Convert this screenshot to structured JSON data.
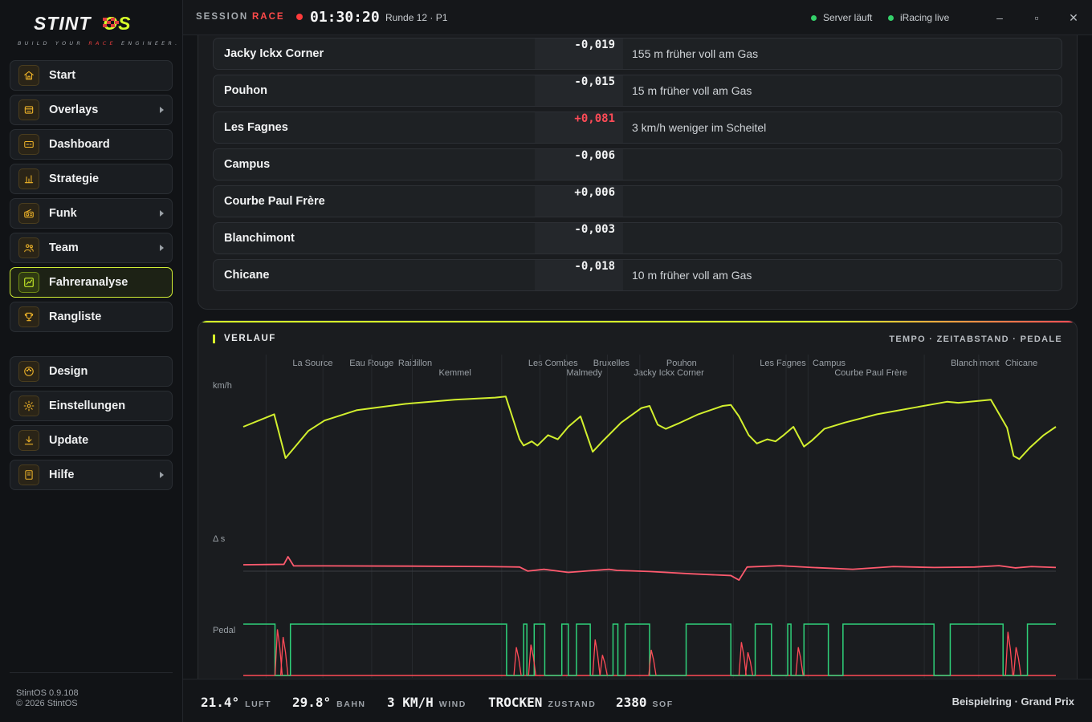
{
  "brand": {
    "name_a": "STINT",
    "name_b": "OS",
    "tagline_a": "BUILD YOUR ",
    "tagline_b": "RACE",
    "tagline_c": " ENGINEER."
  },
  "nav": [
    {
      "label": "Start",
      "icon": "home-icon",
      "arrow": false
    },
    {
      "label": "Overlays",
      "icon": "overlay-icon",
      "arrow": true
    },
    {
      "label": "Dashboard",
      "icon": "dashboard-icon",
      "arrow": false
    },
    {
      "label": "Strategie",
      "icon": "bar-chart-icon",
      "arrow": false
    },
    {
      "label": "Funk",
      "icon": "radio-icon",
      "arrow": true
    },
    {
      "label": "Team",
      "icon": "team-icon",
      "arrow": true
    },
    {
      "label": "Fahreranalyse",
      "icon": "trend-chart-icon",
      "arrow": false,
      "active": true
    },
    {
      "label": "Rangliste",
      "icon": "trophy-icon",
      "arrow": false
    }
  ],
  "nav2": [
    {
      "label": "Design",
      "icon": "palette-icon",
      "arrow": false
    },
    {
      "label": "Einstellungen",
      "icon": "gear-icon",
      "arrow": false
    },
    {
      "label": "Update",
      "icon": "download-icon",
      "arrow": false
    },
    {
      "label": "Hilfe",
      "icon": "book-icon",
      "arrow": true
    }
  ],
  "footer_side": {
    "version": "StintOS 0.9.108",
    "copyright": "© 2026 StintOS"
  },
  "topbar": {
    "session_label": "SESSION",
    "session_type": "RACE",
    "clock": "01:30:20",
    "lap": "Runde 12 · P1",
    "server_status": "Server läuft",
    "iracing_status": "iRacing live",
    "min_glyph": "–",
    "max_glyph": "▫",
    "close_glyph": "✕"
  },
  "corners": [
    {
      "name": "Jacky Ickx Corner",
      "delta": "-0,019",
      "note": "155 m früher voll am Gas",
      "red": false
    },
    {
      "name": "Pouhon",
      "delta": "-0,015",
      "note": "15 m früher voll am Gas",
      "red": false
    },
    {
      "name": "Les Fagnes",
      "delta": "+0,081",
      "note": "3 km/h weniger im Scheitel",
      "red": true
    },
    {
      "name": "Campus",
      "delta": "-0,006",
      "note": "",
      "red": false
    },
    {
      "name": "Courbe Paul Frère",
      "delta": "+0,006",
      "note": "",
      "red": false
    },
    {
      "name": "Blanchimont",
      "delta": "-0,003",
      "note": "",
      "red": false
    },
    {
      "name": "Chicane",
      "delta": "-0,018",
      "note": "10 m früher voll am Gas",
      "red": false
    }
  ],
  "chart": {
    "title": "VERLAUF",
    "subtitle": "TEMPO · ZEITABSTAND · PEDALE",
    "speed_label": "km/h",
    "delta_label": "Δ s",
    "pedal_label": "Pedal",
    "colors": {
      "speed": "#d2ef2e",
      "delta": "#ff5a6e",
      "throttle": "#2fd27a",
      "brake": "#ff4b57"
    }
  },
  "chart_data": {
    "type": "line",
    "x_domain": [
      0,
      1
    ],
    "sector_labels": [
      {
        "name": "La Source",
        "x": 0.03,
        "row": 0
      },
      {
        "name": "Eau Rouge",
        "x": 0.1,
        "row": 0
      },
      {
        "name": "Raidillon",
        "x": 0.16,
        "row": 0
      },
      {
        "name": "Kemmel",
        "x": 0.21,
        "row": 1
      },
      {
        "name": "Les Combes",
        "x": 0.32,
        "row": 0
      },
      {
        "name": "Malmedy",
        "x": 0.367,
        "row": 1
      },
      {
        "name": "Bruxelles",
        "x": 0.4,
        "row": 0
      },
      {
        "name": "Jacky Ickx Corner",
        "x": 0.45,
        "row": 1
      },
      {
        "name": "Pouhon",
        "x": 0.49,
        "row": 0
      },
      {
        "name": "Les Fagnes",
        "x": 0.605,
        "row": 0
      },
      {
        "name": "Campus",
        "x": 0.67,
        "row": 0
      },
      {
        "name": "Courbe Paul Frère",
        "x": 0.697,
        "row": 1
      },
      {
        "name": "Blanchimont",
        "x": 0.84,
        "row": 0
      },
      {
        "name": "Chicane",
        "x": 0.907,
        "row": 0
      }
    ],
    "speed_series": [
      [
        0,
        0.6
      ],
      [
        0.038,
        0.72
      ],
      [
        0.052,
        0.3
      ],
      [
        0.065,
        0.42
      ],
      [
        0.08,
        0.56
      ],
      [
        0.1,
        0.66
      ],
      [
        0.14,
        0.76
      ],
      [
        0.2,
        0.82
      ],
      [
        0.26,
        0.86
      ],
      [
        0.31,
        0.88
      ],
      [
        0.323,
        0.89
      ],
      [
        0.34,
        0.48
      ],
      [
        0.345,
        0.42
      ],
      [
        0.355,
        0.46
      ],
      [
        0.362,
        0.42
      ],
      [
        0.375,
        0.52
      ],
      [
        0.387,
        0.48
      ],
      [
        0.4,
        0.6
      ],
      [
        0.415,
        0.7
      ],
      [
        0.43,
        0.36
      ],
      [
        0.442,
        0.46
      ],
      [
        0.465,
        0.64
      ],
      [
        0.49,
        0.78
      ],
      [
        0.5,
        0.8
      ],
      [
        0.51,
        0.62
      ],
      [
        0.52,
        0.58
      ],
      [
        0.535,
        0.63
      ],
      [
        0.56,
        0.72
      ],
      [
        0.59,
        0.8
      ],
      [
        0.6,
        0.81
      ],
      [
        0.61,
        0.7
      ],
      [
        0.622,
        0.52
      ],
      [
        0.632,
        0.44
      ],
      [
        0.645,
        0.48
      ],
      [
        0.655,
        0.46
      ],
      [
        0.665,
        0.52
      ],
      [
        0.677,
        0.6
      ],
      [
        0.69,
        0.41
      ],
      [
        0.7,
        0.47
      ],
      [
        0.715,
        0.58
      ],
      [
        0.74,
        0.64
      ],
      [
        0.78,
        0.72
      ],
      [
        0.83,
        0.79
      ],
      [
        0.866,
        0.84
      ],
      [
        0.88,
        0.83
      ],
      [
        0.92,
        0.86
      ],
      [
        0.94,
        0.59
      ],
      [
        0.948,
        0.32
      ],
      [
        0.955,
        0.29
      ],
      [
        0.968,
        0.4
      ],
      [
        0.985,
        0.52
      ],
      [
        1,
        0.6
      ]
    ],
    "speed_domain_note": "normalized 0–1 relative to the visible speed band",
    "delta_series": [
      [
        0,
        0.5
      ],
      [
        0.05,
        0.52
      ],
      [
        0.055,
        0.86
      ],
      [
        0.062,
        0.45
      ],
      [
        0.1,
        0.45
      ],
      [
        0.2,
        0.44
      ],
      [
        0.3,
        0.42
      ],
      [
        0.34,
        0.4
      ],
      [
        0.35,
        0.22
      ],
      [
        0.37,
        0.3
      ],
      [
        0.4,
        0.16
      ],
      [
        0.45,
        0.3
      ],
      [
        0.46,
        0.25
      ],
      [
        0.5,
        0.2
      ],
      [
        0.55,
        0.1
      ],
      [
        0.6,
        0.02
      ],
      [
        0.61,
        -0.18
      ],
      [
        0.62,
        0.4
      ],
      [
        0.66,
        0.46
      ],
      [
        0.7,
        0.38
      ],
      [
        0.75,
        0.3
      ],
      [
        0.8,
        0.42
      ],
      [
        0.85,
        0.38
      ],
      [
        0.9,
        0.4
      ],
      [
        0.93,
        0.46
      ],
      [
        0.95,
        0.36
      ],
      [
        0.97,
        0.42
      ],
      [
        1,
        0.38
      ]
    ],
    "throttle_on_segments": [
      [
        0,
        0.039
      ],
      [
        0.058,
        0.324
      ],
      [
        0.345,
        0.349
      ],
      [
        0.358,
        0.371
      ],
      [
        0.392,
        0.4
      ],
      [
        0.41,
        0.427
      ],
      [
        0.455,
        0.461
      ],
      [
        0.47,
        0.5
      ],
      [
        0.545,
        0.6
      ],
      [
        0.63,
        0.65
      ],
      [
        0.67,
        0.674
      ],
      [
        0.69,
        0.72
      ],
      [
        0.738,
        0.85
      ],
      [
        0.87,
        0.935
      ],
      [
        0.965,
        1
      ]
    ],
    "brake_spikes": [
      {
        "x": 0.043,
        "h": 0.9
      },
      {
        "x": 0.05,
        "h": 0.75
      },
      {
        "x": 0.337,
        "h": 0.55
      },
      {
        "x": 0.355,
        "h": 0.6
      },
      {
        "x": 0.434,
        "h": 0.7
      },
      {
        "x": 0.443,
        "h": 0.4
      },
      {
        "x": 0.503,
        "h": 0.5
      },
      {
        "x": 0.614,
        "h": 0.65
      },
      {
        "x": 0.622,
        "h": 0.45
      },
      {
        "x": 0.684,
        "h": 0.55
      },
      {
        "x": 0.942,
        "h": 0.85
      },
      {
        "x": 0.952,
        "h": 0.55
      }
    ]
  },
  "weather": [
    {
      "value": "21.4°",
      "unit": "LUFT"
    },
    {
      "value": "29.8°",
      "unit": "BAHN"
    },
    {
      "value": "3 KM/H",
      "unit": "WIND"
    },
    {
      "value": "TROCKEN",
      "unit": "ZUSTAND"
    },
    {
      "value": "2380",
      "unit": "SOF"
    }
  ],
  "track": "Beispielring · Grand Prix"
}
